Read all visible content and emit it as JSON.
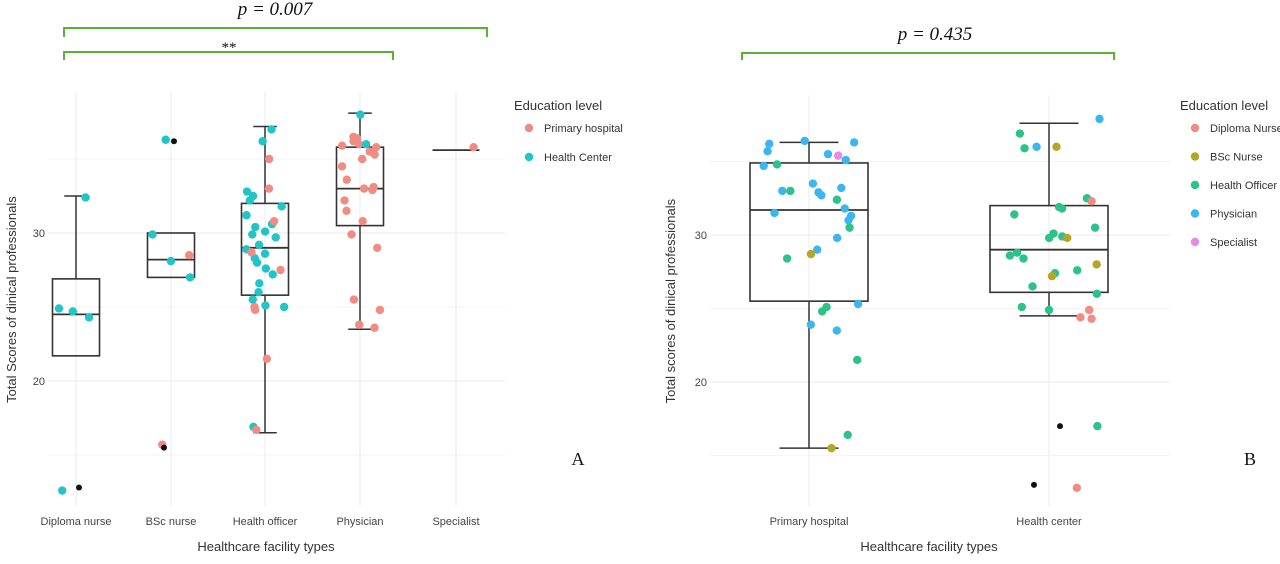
{
  "colors": {
    "primary_hospital": "#F08C83",
    "health_center": "#22C5C7",
    "diploma_nurse": "#F08C83",
    "bsc_nurse": "#B8A525",
    "health_officer": "#2CC38A",
    "physician": "#3BB6EF",
    "specialist": "#E38BE6",
    "outlier": "#111111",
    "bracket": "#59B233",
    "box": "#333333",
    "grid": "#EBEBEB"
  },
  "chart_data": [
    {
      "type": "box",
      "panel": "A",
      "significance": {
        "label": "p = 0.007",
        "sub_label": "**"
      },
      "xlabel": "Healthcare facility types",
      "ylabel": "Total Scores of dinical professionals",
      "yticks": [
        20,
        30
      ],
      "ylim": [
        11.5,
        39.5
      ],
      "categories": [
        "Diploma nurse",
        "BSc nurse",
        "Health officer",
        "Physician",
        "Specialist"
      ],
      "legend": {
        "title": "Education level",
        "entries": [
          {
            "label": "Primary hospital",
            "color_key": "primary_hospital"
          },
          {
            "label": "Health Center",
            "color_key": "health_center"
          }
        ]
      },
      "boxes": [
        {
          "category": "Diploma nurse",
          "lower_whisker": 21.7,
          "q1": 21.7,
          "median": 24.5,
          "q3": 26.9,
          "upper_whisker": 32.5,
          "outliers": [
            12.8
          ]
        },
        {
          "category": "BSc nurse",
          "lower_whisker": 27.0,
          "q1": 27.0,
          "median": 28.2,
          "q3": 30.0,
          "upper_whisker": 30.0,
          "outliers": [
            36.2,
            15.5
          ]
        },
        {
          "category": "Health officer",
          "lower_whisker": 16.5,
          "q1": 25.8,
          "median": 29.0,
          "q3": 32.0,
          "upper_whisker": 37.2,
          "outliers": []
        },
        {
          "category": "Physician",
          "lower_whisker": 23.5,
          "q1": 30.5,
          "median": 33.0,
          "q3": 35.8,
          "upper_whisker": 38.1,
          "outliers": []
        },
        {
          "category": "Specialist",
          "lower_whisker": 35.6,
          "q1": 35.6,
          "median": 35.6,
          "q3": 35.6,
          "upper_whisker": 35.6,
          "outliers": []
        }
      ],
      "points": [
        {
          "category": "Diploma nurse",
          "group": "health_center",
          "y": [
            32.4,
            24.9,
            24.7,
            24.3,
            12.6
          ]
        },
        {
          "category": "BSc nurse",
          "group": "health_center",
          "y": [
            36.3,
            29.9,
            28.1,
            27.0
          ]
        },
        {
          "category": "BSc nurse",
          "group": "primary_hospital",
          "y": [
            28.5,
            15.7
          ]
        },
        {
          "category": "Health officer",
          "group": "health_center",
          "y": [
            37.0,
            36.2,
            32.8,
            32.5,
            32.2,
            31.8,
            31.2,
            30.6,
            30.4,
            30.1,
            29.9,
            29.7,
            29.2,
            28.9,
            28.6,
            28.3,
            28.0,
            27.6,
            27.2,
            26.6,
            26.0,
            25.5,
            25.1,
            25.0,
            16.9
          ]
        },
        {
          "category": "Health officer",
          "group": "primary_hospital",
          "y": [
            35.0,
            33.0,
            30.8,
            28.7,
            27.5,
            25.0,
            24.8,
            21.5,
            16.7
          ]
        },
        {
          "category": "Physician",
          "group": "primary_hospital",
          "y": [
            36.5,
            36.4,
            36.2,
            36.0,
            35.9,
            35.8,
            35.5,
            35.3,
            35.0,
            34.5,
            33.6,
            33.1,
            33.0,
            32.9,
            32.2,
            31.5,
            30.8,
            29.9,
            29.0,
            25.5,
            24.8,
            23.8,
            23.6
          ]
        },
        {
          "category": "Physician",
          "group": "health_center",
          "y": [
            38.0,
            36.0
          ]
        },
        {
          "category": "Specialist",
          "group": "primary_hospital",
          "y": [
            35.8
          ]
        }
      ]
    },
    {
      "type": "box",
      "panel": "B",
      "significance": {
        "label": "p = 0.435"
      },
      "xlabel": "Healthcare facility types",
      "ylabel": "Total scores of dinical professionals",
      "yticks": [
        20,
        30
      ],
      "ylim": [
        11.5,
        39.5
      ],
      "categories": [
        "Primary hospital",
        "Health center"
      ],
      "legend": {
        "title": "Education level",
        "entries": [
          {
            "label": "Diploma Nurse",
            "color_key": "diploma_nurse"
          },
          {
            "label": "BSc Nurse",
            "color_key": "bsc_nurse"
          },
          {
            "label": "Health Officer",
            "color_key": "health_officer"
          },
          {
            "label": "Physician",
            "color_key": "physician"
          },
          {
            "label": "Specialist",
            "color_key": "specialist"
          }
        ]
      },
      "boxes": [
        {
          "category": "Primary hospital",
          "lower_whisker": 15.5,
          "q1": 25.5,
          "median": 31.7,
          "q3": 34.9,
          "upper_whisker": 36.3,
          "outliers": []
        },
        {
          "category": "Health center",
          "lower_whisker": 24.5,
          "q1": 26.1,
          "median": 29.0,
          "q3": 32.0,
          "upper_whisker": 37.6,
          "outliers": [
            17.0,
            13.0
          ]
        }
      ],
      "points": [
        {
          "category": "Primary hospital",
          "group": "physician",
          "y": [
            36.4,
            36.3,
            36.2,
            35.7,
            35.5,
            35.1,
            34.7,
            33.5,
            33.2,
            33.0,
            32.9,
            32.7,
            31.8,
            31.5,
            31.3,
            31.0,
            29.8,
            29.0,
            25.3,
            23.9,
            23.5
          ]
        },
        {
          "category": "Primary hospital",
          "group": "health_officer",
          "y": [
            34.8,
            33.0,
            32.4,
            30.5,
            28.4,
            25.1,
            24.8,
            21.5,
            16.4
          ]
        },
        {
          "category": "Primary hospital",
          "group": "bsc_nurse",
          "y": [
            28.7,
            15.5
          ]
        },
        {
          "category": "Primary hospital",
          "group": "specialist",
          "y": [
            35.4
          ]
        },
        {
          "category": "Health center",
          "group": "physician",
          "y": [
            37.9,
            36.0
          ]
        },
        {
          "category": "Health center",
          "group": "health_officer",
          "y": [
            36.9,
            35.9,
            32.5,
            31.4,
            31.9,
            31.8,
            30.5,
            30.1,
            29.9,
            29.8,
            28.8,
            28.6,
            28.4,
            27.6,
            27.4,
            26.5,
            26.0,
            25.1,
            24.9,
            17.0
          ]
        },
        {
          "category": "Health center",
          "group": "bsc_nurse",
          "y": [
            36.0,
            29.8,
            28.0,
            27.2
          ]
        },
        {
          "category": "Health center",
          "group": "diploma_nurse",
          "y": [
            32.3,
            24.9,
            24.4,
            24.3,
            12.8
          ]
        }
      ]
    }
  ]
}
